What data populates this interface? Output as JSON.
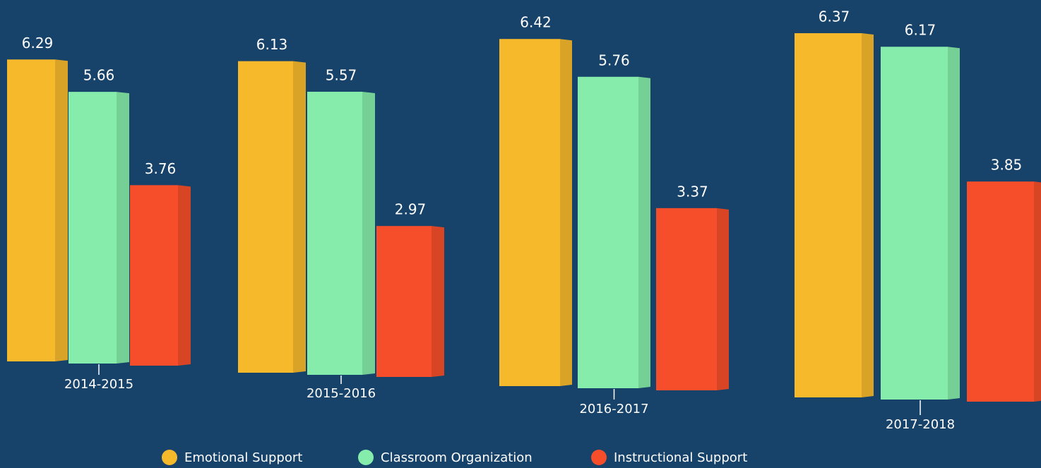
{
  "chart_data": {
    "type": "bar",
    "categories": [
      "2014-2015",
      "2015-2016",
      "2016-2017",
      "2017-2018"
    ],
    "series": [
      {
        "name": "Emotional Support",
        "color": "#f6b92b",
        "values": [
          6.29,
          6.13,
          6.42,
          6.37
        ]
      },
      {
        "name": "Classroom Organization",
        "color": "#85ecab",
        "values": [
          5.66,
          5.57,
          5.76,
          6.17
        ]
      },
      {
        "name": "Instructional Support",
        "color": "#f64e2a",
        "values": [
          3.76,
          2.97,
          3.37,
          3.85
        ]
      }
    ]
  }
}
